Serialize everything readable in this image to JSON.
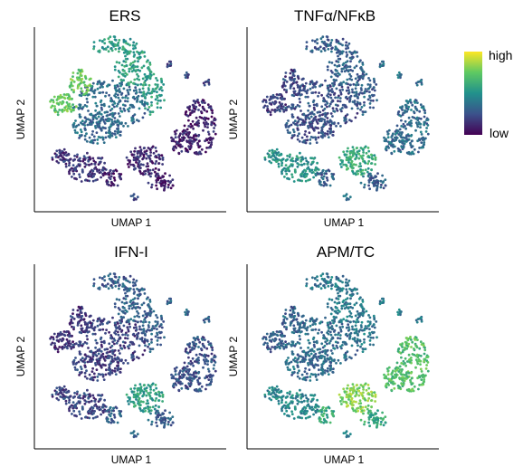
{
  "chart_data": {
    "type": "scatter",
    "panels": [
      {
        "title": "ERS",
        "xlabel": "UMAP 1",
        "ylabel": "UMAP 2",
        "cluster_scores": {
          "left_arm": 0.75,
          "top_fan": 0.55,
          "center_body": 0.35,
          "right_lobe": 0.1,
          "bottom_left": 0.15,
          "bottom_mid": 0.12,
          "bottom_right": 0.1,
          "small_spots": 0.2
        }
      },
      {
        "title": "TNFα/NFκB",
        "xlabel": "UMAP 1",
        "ylabel": "UMAP 2",
        "cluster_scores": {
          "left_arm": 0.2,
          "top_fan": 0.3,
          "center_body": 0.25,
          "right_lobe": 0.35,
          "bottom_left": 0.5,
          "bottom_mid": 0.6,
          "bottom_right": 0.3,
          "small_spots": 0.35
        }
      },
      {
        "title": "IFN-I",
        "xlabel": "UMAP 1",
        "ylabel": "UMAP 2",
        "cluster_scores": {
          "left_arm": 0.15,
          "top_fan": 0.3,
          "center_body": 0.2,
          "right_lobe": 0.25,
          "bottom_left": 0.2,
          "bottom_mid": 0.55,
          "bottom_right": 0.3,
          "small_spots": 0.3
        }
      },
      {
        "title": "APM/TC",
        "xlabel": "UMAP 1",
        "ylabel": "UMAP 2",
        "cluster_scores": {
          "left_arm": 0.3,
          "top_fan": 0.4,
          "center_body": 0.35,
          "right_lobe": 0.7,
          "bottom_left": 0.45,
          "bottom_mid": 0.8,
          "bottom_right": 0.6,
          "small_spots": 0.4
        }
      }
    ],
    "legend": {
      "high_label": "high",
      "low_label": "low",
      "colormap": [
        "#440154",
        "#3b528b",
        "#21918c",
        "#5ec962",
        "#fde725"
      ],
      "placement": "top-right"
    }
  }
}
